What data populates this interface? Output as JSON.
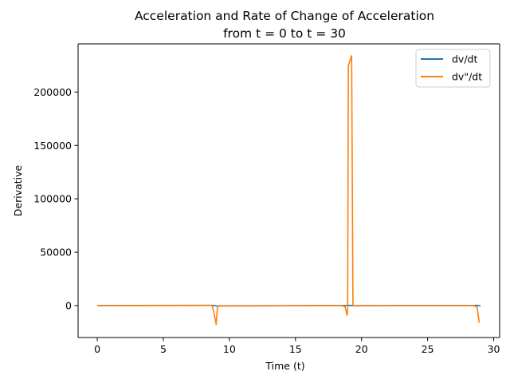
{
  "chart_data": {
    "type": "line",
    "title_line1": "Acceleration and Rate of Change of Acceleration",
    "title_line2": "from t = 0 to t = 30",
    "xlabel": "Time (t)",
    "ylabel": "Derivative",
    "xlim": [
      -1.45,
      30.45
    ],
    "ylim": [
      -29900,
      245100
    ],
    "x_ticks": [
      0,
      5,
      10,
      15,
      20,
      25,
      30
    ],
    "x_tick_labels": [
      "0",
      "5",
      "10",
      "15",
      "20",
      "25",
      "30"
    ],
    "y_ticks": [
      0,
      50000,
      100000,
      150000,
      200000
    ],
    "y_tick_labels": [
      "0",
      "50000",
      "100000",
      "150000",
      "200000"
    ],
    "grid": false,
    "legend_position": "top-right",
    "series": [
      {
        "name": "dv/dt",
        "color": "#1f77b4",
        "points": [
          [
            0,
            0
          ],
          [
            4,
            60
          ],
          [
            8,
            150
          ],
          [
            8.8,
            250
          ],
          [
            9.0,
            -400
          ],
          [
            9.2,
            -200
          ],
          [
            12,
            -100
          ],
          [
            16,
            0
          ],
          [
            18.8,
            100
          ],
          [
            19.1,
            250
          ],
          [
            19.4,
            -150
          ],
          [
            22,
            0
          ],
          [
            26,
            50
          ],
          [
            28.5,
            100
          ],
          [
            28.8,
            200
          ],
          [
            29.0,
            -300
          ]
        ]
      },
      {
        "name": "dv\"/dt",
        "color": "#ff7f0e",
        "points": [
          [
            0,
            0
          ],
          [
            3,
            100
          ],
          [
            6,
            200
          ],
          [
            8.4,
            300
          ],
          [
            8.7,
            0
          ],
          [
            8.85,
            -8000
          ],
          [
            9.0,
            -17500
          ],
          [
            9.1,
            -500
          ],
          [
            9.3,
            -400
          ],
          [
            12,
            -300
          ],
          [
            15,
            -100
          ],
          [
            18.5,
            0
          ],
          [
            18.75,
            -1000
          ],
          [
            18.9,
            -9000
          ],
          [
            18.95,
            -4000
          ],
          [
            19.0,
            224000
          ],
          [
            19.05,
            226500
          ],
          [
            19.15,
            230500
          ],
          [
            19.25,
            234000
          ],
          [
            19.35,
            0
          ],
          [
            19.45,
            0
          ],
          [
            22,
            0
          ],
          [
            25,
            0
          ],
          [
            28.5,
            0
          ],
          [
            28.75,
            -1500
          ],
          [
            28.9,
            -16000
          ]
        ]
      }
    ]
  }
}
